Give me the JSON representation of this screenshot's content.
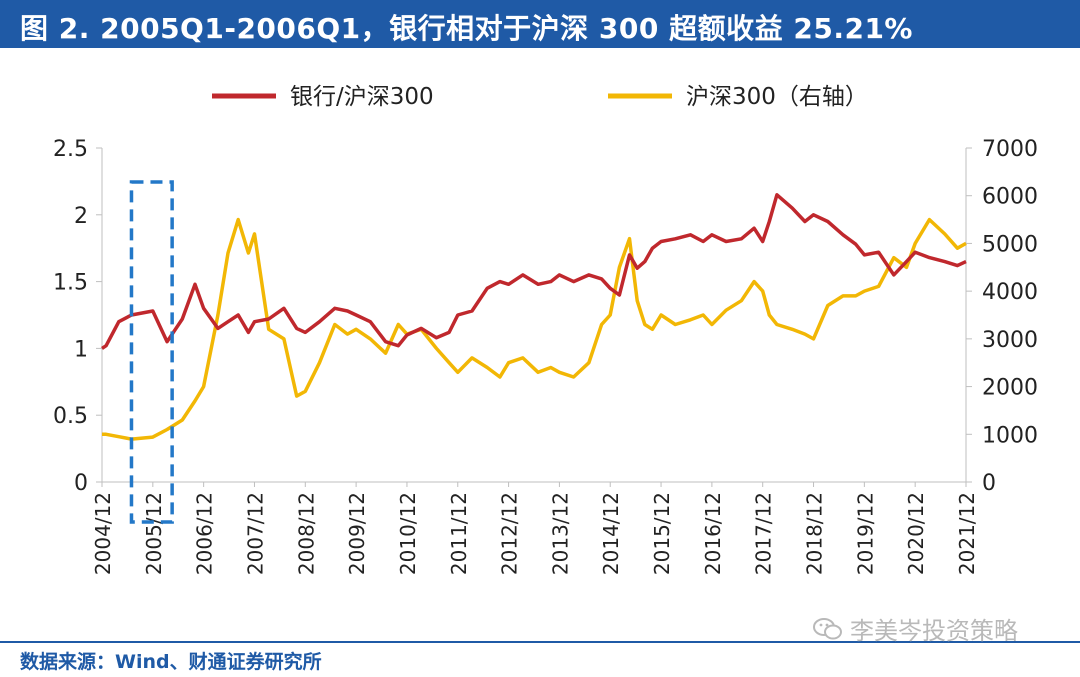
{
  "header": {
    "title": "图 2. 2005Q1-2006Q1，银行相对于沪深 300 超额收益 25.21%"
  },
  "chart_data": {
    "type": "line",
    "title": "图 2. 2005Q1-2006Q1，银行相对于沪深 300 超额收益 25.21%",
    "categories": [
      "2004/12",
      "2005/12",
      "2006/12",
      "2007/12",
      "2008/12",
      "2009/12",
      "2010/12",
      "2011/12",
      "2012/12",
      "2013/12",
      "2014/12",
      "2015/12",
      "2016/12",
      "2017/12",
      "2018/12",
      "2019/12",
      "2020/12",
      "2021/12"
    ],
    "x": [
      2004.92,
      2005.0,
      2005.25,
      2005.5,
      2005.92,
      2006.2,
      2006.5,
      2006.75,
      2006.92,
      2007.2,
      2007.4,
      2007.6,
      2007.8,
      2007.92,
      2008.2,
      2008.5,
      2008.75,
      2008.92,
      2009.2,
      2009.5,
      2009.75,
      2009.92,
      2010.2,
      2010.5,
      2010.75,
      2010.92,
      2011.2,
      2011.5,
      2011.75,
      2011.92,
      2012.2,
      2012.5,
      2012.75,
      2012.92,
      2013.2,
      2013.5,
      2013.75,
      2013.92,
      2014.2,
      2014.5,
      2014.75,
      2014.92,
      2015.1,
      2015.3,
      2015.45,
      2015.6,
      2015.75,
      2015.92,
      2016.2,
      2016.5,
      2016.75,
      2016.92,
      2017.2,
      2017.5,
      2017.75,
      2017.92,
      2018.05,
      2018.2,
      2018.5,
      2018.75,
      2018.92,
      2019.2,
      2019.5,
      2019.75,
      2019.92,
      2020.2,
      2020.5,
      2020.75,
      2020.92,
      2021.2,
      2021.5,
      2021.75,
      2021.92
    ],
    "series": [
      {
        "name": "银行/沪深300",
        "axis": "left",
        "color": "#c0282d",
        "values": [
          1.0,
          1.02,
          1.2,
          1.25,
          1.28,
          1.05,
          1.22,
          1.48,
          1.3,
          1.15,
          1.2,
          1.25,
          1.12,
          1.2,
          1.22,
          1.3,
          1.15,
          1.12,
          1.2,
          1.3,
          1.28,
          1.25,
          1.2,
          1.05,
          1.02,
          1.1,
          1.15,
          1.08,
          1.12,
          1.25,
          1.28,
          1.45,
          1.5,
          1.48,
          1.55,
          1.48,
          1.5,
          1.55,
          1.5,
          1.55,
          1.52,
          1.45,
          1.4,
          1.7,
          1.6,
          1.65,
          1.75,
          1.8,
          1.82,
          1.85,
          1.8,
          1.85,
          1.8,
          1.82,
          1.9,
          1.8,
          1.95,
          2.15,
          2.05,
          1.95,
          2.0,
          1.95,
          1.85,
          1.78,
          1.7,
          1.72,
          1.55,
          1.65,
          1.72,
          1.68,
          1.65,
          1.62,
          1.65
        ]
      },
      {
        "name": "沪深300（右轴）",
        "axis": "right",
        "color": "#f2b705",
        "values": [
          1000,
          1000,
          950,
          900,
          940,
          1100,
          1300,
          1700,
          2000,
          3500,
          4800,
          5500,
          4800,
          5200,
          3200,
          3000,
          1800,
          1900,
          2500,
          3300,
          3100,
          3200,
          3000,
          2700,
          3300,
          3100,
          3200,
          2800,
          2500,
          2300,
          2600,
          2400,
          2200,
          2500,
          2600,
          2300,
          2400,
          2300,
          2200,
          2500,
          3300,
          3500,
          4500,
          5100,
          3800,
          3300,
          3200,
          3500,
          3300,
          3400,
          3500,
          3300,
          3600,
          3800,
          4200,
          4000,
          3500,
          3300,
          3200,
          3100,
          3000,
          3700,
          3900,
          3900,
          4000,
          4100,
          4700,
          4500,
          5000,
          5500,
          5200,
          4900,
          5000
        ]
      }
    ],
    "left_axis": {
      "ylim": [
        0,
        2.5
      ],
      "ticks": [
        "0",
        "0.5",
        "1",
        "1.5",
        "2",
        "2.5"
      ]
    },
    "right_axis": {
      "ylim": [
        0,
        7000
      ],
      "ticks": [
        "0",
        "1000",
        "2000",
        "3000",
        "4000",
        "5000",
        "6000",
        "7000"
      ]
    },
    "xlim": [
      2004.92,
      2021.92
    ],
    "highlight": {
      "from": 2005.5,
      "to": 2006.3,
      "style": "dashed box",
      "color": "#2378c8"
    },
    "legend": {
      "placement": "top",
      "entries": [
        {
          "label": "银行/沪深300",
          "color": "#c0282d"
        },
        {
          "label": "沪深300（右轴）",
          "color": "#f2b705"
        }
      ]
    }
  },
  "footer": {
    "source": "数据来源：Wind、财通证券研究所",
    "watermark": "李美岑投资策略"
  }
}
